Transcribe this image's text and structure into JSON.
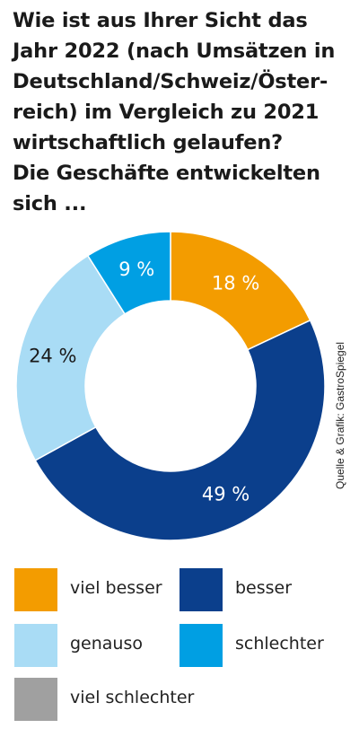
{
  "title_lines": [
    "Wie ist aus Ihrer Sicht das",
    "Jahr 2022 (nach Umsätzen in",
    "Deutschland/Schweiz/Öster-",
    "reich) im Vergleich zu 2021",
    "wirtschaftlich gelaufen?",
    "Die Geschäfte entwickelten",
    "sich ..."
  ],
  "source": "Quelle & Grafik: GastroSpiegel",
  "chart_data": {
    "type": "pie",
    "variant": "donut",
    "categories": [
      "viel besser",
      "besser",
      "genauso",
      "schlechter",
      "viel schlechter"
    ],
    "values": [
      18,
      49,
      24,
      9,
      0
    ],
    "value_labels": [
      "18 %",
      "49 %",
      "24 %",
      "9 %",
      ""
    ],
    "colors": [
      "#f39c00",
      "#0b3f8c",
      "#a9dcf5",
      "#009fe3",
      "#a0a0a0"
    ],
    "label_colors": [
      "#ffffff",
      "#ffffff",
      "#1a1a1a",
      "#ffffff",
      "#1a1a1a"
    ],
    "legend_placement": "bottom"
  }
}
